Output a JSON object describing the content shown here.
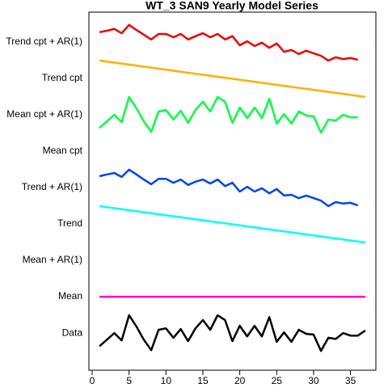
{
  "chart_data": {
    "type": "line",
    "title": "WT_3 SAN9 Yearly Model Series",
    "xlim": [
      -0.44,
      38.44
    ],
    "xticks": [
      0,
      5,
      10,
      15,
      20,
      25,
      30,
      35
    ],
    "ylim": [
      -0.02,
      9.82
    ],
    "yticks": [
      {
        "value": 1,
        "label": "Data"
      },
      {
        "value": 2,
        "label": "Mean"
      },
      {
        "value": 3,
        "label": "Mean + AR(1)"
      },
      {
        "value": 4,
        "label": "Trend"
      },
      {
        "value": 5,
        "label": "Trend + AR(1)"
      },
      {
        "value": 6,
        "label": "Mean cpt"
      },
      {
        "value": 7,
        "label": "Mean cpt + AR(1)"
      },
      {
        "value": 8,
        "label": "Trend cpt"
      },
      {
        "value": 9,
        "label": "Trend cpt + AR(1)"
      }
    ],
    "series": [
      {
        "color": "#000000",
        "x": [
          1,
          2,
          3,
          4,
          5,
          6,
          7,
          8,
          9,
          10,
          11,
          12,
          13,
          14,
          15,
          16,
          17,
          18,
          19,
          20,
          21,
          22,
          23,
          24,
          25,
          26,
          27,
          28,
          29,
          30,
          31,
          32,
          33,
          34,
          35,
          36,
          37
        ],
        "values": [
          0.64,
          0.82,
          1.0,
          0.8,
          1.49,
          1.18,
          0.82,
          0.53,
          1.09,
          1.13,
          0.87,
          1.11,
          0.78,
          1.13,
          1.36,
          1.09,
          1.49,
          1.36,
          0.78,
          1.2,
          0.91,
          1.2,
          0.91,
          1.44,
          0.76,
          1.02,
          0.76,
          1.09,
          0.98,
          0.96,
          0.51,
          0.87,
          0.84,
          1.0,
          0.93,
          0.93,
          1.07
        ]
      },
      {
        "color": "#ff00cc",
        "x": [
          1,
          37
        ],
        "values": [
          2,
          2
        ]
      },
      {
        "color": "#00ffff",
        "x": [
          1,
          37
        ],
        "values": [
          4.49,
          3.49
        ]
      },
      {
        "color": "#0044ee",
        "x": [
          1,
          2,
          3,
          4,
          5,
          6,
          7,
          8,
          9,
          10,
          11,
          12,
          13,
          14,
          15,
          16,
          17,
          18,
          19,
          20,
          21,
          22,
          23,
          24,
          25,
          26,
          27,
          28,
          29,
          30,
          31,
          32,
          33,
          34,
          35,
          36
        ],
        "values": [
          5.31,
          5.36,
          5.4,
          5.29,
          5.49,
          5.36,
          5.22,
          5.09,
          5.24,
          5.24,
          5.13,
          5.22,
          5.07,
          5.16,
          5.22,
          5.11,
          5.22,
          5.04,
          5.13,
          4.89,
          5.02,
          4.89,
          4.98,
          4.84,
          4.96,
          4.78,
          4.8,
          4.71,
          4.78,
          4.71,
          4.64,
          4.49,
          4.6,
          4.56,
          4.58,
          4.51
        ]
      },
      {
        "color": "#00ff44",
        "x": [
          1,
          2,
          3,
          4,
          5,
          6,
          7,
          8,
          9,
          10,
          11,
          12,
          13,
          14,
          15,
          16,
          17,
          18,
          19,
          20,
          21,
          22,
          23,
          24,
          25,
          26,
          27,
          28,
          29,
          30,
          31,
          32,
          33,
          34,
          35,
          36
        ],
        "values": [
          6.64,
          6.82,
          7.0,
          6.8,
          7.49,
          7.18,
          6.82,
          6.53,
          7.09,
          7.13,
          6.87,
          7.11,
          6.78,
          7.13,
          7.36,
          7.09,
          7.49,
          7.36,
          6.78,
          7.2,
          6.91,
          7.2,
          6.91,
          7.44,
          6.76,
          7.02,
          6.76,
          7.09,
          6.98,
          6.96,
          6.51,
          6.87,
          6.84,
          7.0,
          6.93,
          6.93
        ]
      },
      {
        "color": "#ffb000",
        "x": [
          1,
          37
        ],
        "values": [
          8.49,
          7.49
        ]
      },
      {
        "color": "#ee0000",
        "x": [
          1,
          2,
          3,
          4,
          5,
          6,
          7,
          8,
          9,
          10,
          11,
          12,
          13,
          14,
          15,
          16,
          17,
          18,
          19,
          20,
          21,
          22,
          23,
          24,
          25,
          26,
          27,
          28,
          29,
          30,
          31,
          32,
          33,
          34,
          35,
          36
        ],
        "values": [
          9.27,
          9.31,
          9.36,
          9.24,
          9.47,
          9.33,
          9.2,
          9.07,
          9.22,
          9.22,
          9.13,
          9.22,
          9.07,
          9.16,
          9.24,
          9.13,
          9.22,
          9.07,
          9.16,
          8.91,
          9.02,
          8.89,
          8.98,
          8.84,
          8.96,
          8.73,
          8.78,
          8.67,
          8.76,
          8.69,
          8.62,
          8.49,
          8.58,
          8.53,
          8.56,
          8.51
        ]
      }
    ]
  }
}
